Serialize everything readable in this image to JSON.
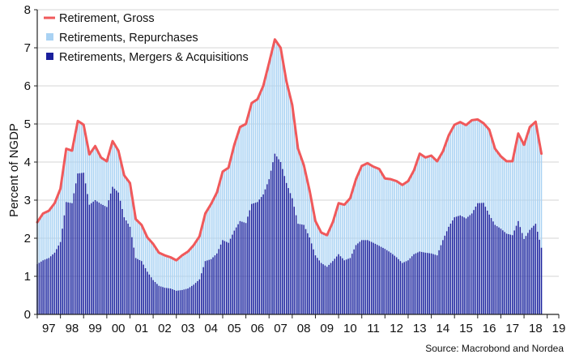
{
  "chart_data": {
    "type": "bar",
    "ylabel": "Percent of NGDP",
    "ylim": [
      0,
      8
    ],
    "yticks": [
      "0",
      "1",
      "2",
      "3",
      "4",
      "5",
      "6",
      "7",
      "8"
    ],
    "x_start": 1997.0,
    "x_end": 2019.5,
    "x_tick_labels": [
      "97",
      "98",
      "99",
      "00",
      "01",
      "02",
      "03",
      "04",
      "05",
      "06",
      "07",
      "08",
      "09",
      "10",
      "11",
      "12",
      "13",
      "14",
      "15",
      "16",
      "17",
      "18",
      "19"
    ],
    "legend": [
      {
        "name": "Retirement, Gross",
        "color": "#f0595b",
        "marker": "line"
      },
      {
        "name": "Retirements, Repurchases",
        "color": "#a9d2f3",
        "marker": "square"
      },
      {
        "name": "Retirements, Mergers & Acquisitions",
        "color": "#1a1f9c",
        "marker": "square"
      }
    ],
    "source": "Source: Macrobond and Nordea",
    "series": [
      {
        "name": "Retirement, Gross",
        "points": [
          [
            1997.0,
            2.42
          ],
          [
            1997.25,
            2.65
          ],
          [
            1997.5,
            2.72
          ],
          [
            1997.75,
            2.92
          ],
          [
            1998.0,
            3.3
          ],
          [
            1998.25,
            4.35
          ],
          [
            1998.5,
            4.3
          ],
          [
            1998.75,
            5.08
          ],
          [
            1999.0,
            4.98
          ],
          [
            1999.25,
            4.2
          ],
          [
            1999.5,
            4.42
          ],
          [
            1999.75,
            4.12
          ],
          [
            2000.0,
            4.02
          ],
          [
            2000.25,
            4.55
          ],
          [
            2000.5,
            4.3
          ],
          [
            2000.75,
            3.65
          ],
          [
            2001.0,
            3.45
          ],
          [
            2001.25,
            2.5
          ],
          [
            2001.5,
            2.35
          ],
          [
            2001.75,
            2.02
          ],
          [
            2002.0,
            1.85
          ],
          [
            2002.25,
            1.62
          ],
          [
            2002.5,
            1.55
          ],
          [
            2002.75,
            1.5
          ],
          [
            2003.0,
            1.42
          ],
          [
            2003.25,
            1.55
          ],
          [
            2003.5,
            1.65
          ],
          [
            2003.75,
            1.82
          ],
          [
            2004.0,
            2.05
          ],
          [
            2004.25,
            2.65
          ],
          [
            2004.5,
            2.9
          ],
          [
            2004.75,
            3.2
          ],
          [
            2005.0,
            3.75
          ],
          [
            2005.25,
            3.85
          ],
          [
            2005.5,
            4.45
          ],
          [
            2005.75,
            4.92
          ],
          [
            2006.0,
            5.0
          ],
          [
            2006.25,
            5.55
          ],
          [
            2006.5,
            5.65
          ],
          [
            2006.75,
            6.0
          ],
          [
            2007.0,
            6.6
          ],
          [
            2007.25,
            7.22
          ],
          [
            2007.5,
            7.0
          ],
          [
            2007.75,
            6.12
          ],
          [
            2008.0,
            5.5
          ],
          [
            2008.25,
            4.35
          ],
          [
            2008.5,
            3.92
          ],
          [
            2008.75,
            3.25
          ],
          [
            2009.0,
            2.45
          ],
          [
            2009.25,
            2.15
          ],
          [
            2009.5,
            2.08
          ],
          [
            2009.75,
            2.42
          ],
          [
            2010.0,
            2.92
          ],
          [
            2010.25,
            2.88
          ],
          [
            2010.5,
            3.05
          ],
          [
            2010.75,
            3.55
          ],
          [
            2011.0,
            3.9
          ],
          [
            2011.25,
            3.97
          ],
          [
            2011.5,
            3.88
          ],
          [
            2011.75,
            3.82
          ],
          [
            2012.0,
            3.57
          ],
          [
            2012.25,
            3.55
          ],
          [
            2012.5,
            3.5
          ],
          [
            2012.75,
            3.4
          ],
          [
            2013.0,
            3.5
          ],
          [
            2013.25,
            3.78
          ],
          [
            2013.5,
            4.22
          ],
          [
            2013.75,
            4.12
          ],
          [
            2014.0,
            4.17
          ],
          [
            2014.25,
            4.02
          ],
          [
            2014.5,
            4.28
          ],
          [
            2014.75,
            4.7
          ],
          [
            2015.0,
            4.98
          ],
          [
            2015.25,
            5.05
          ],
          [
            2015.5,
            4.97
          ],
          [
            2015.75,
            5.1
          ],
          [
            2016.0,
            5.12
          ],
          [
            2016.25,
            5.02
          ],
          [
            2016.5,
            4.85
          ],
          [
            2016.75,
            4.35
          ],
          [
            2017.0,
            4.15
          ],
          [
            2017.25,
            4.02
          ],
          [
            2017.5,
            4.02
          ],
          [
            2017.75,
            4.75
          ],
          [
            2018.0,
            4.45
          ],
          [
            2018.25,
            4.92
          ],
          [
            2018.5,
            5.06
          ],
          [
            2018.75,
            4.22
          ]
        ]
      },
      {
        "name": "Retirements, Repurchases",
        "points": [
          [
            1997.0,
            2.4
          ],
          [
            1997.25,
            2.62
          ],
          [
            1997.5,
            2.7
          ],
          [
            1997.75,
            2.9
          ],
          [
            1998.0,
            3.28
          ],
          [
            1998.25,
            4.3
          ],
          [
            1998.5,
            4.28
          ],
          [
            1998.75,
            5.05
          ],
          [
            1999.0,
            4.95
          ],
          [
            1999.25,
            4.18
          ],
          [
            1999.5,
            4.4
          ],
          [
            1999.75,
            4.1
          ],
          [
            2000.0,
            4.0
          ],
          [
            2000.25,
            4.5
          ],
          [
            2000.5,
            4.28
          ],
          [
            2000.75,
            3.62
          ],
          [
            2001.0,
            3.42
          ],
          [
            2001.25,
            2.48
          ],
          [
            2001.5,
            2.32
          ],
          [
            2001.75,
            2.0
          ],
          [
            2002.0,
            1.82
          ],
          [
            2002.25,
            1.6
          ],
          [
            2002.5,
            1.52
          ],
          [
            2002.75,
            1.48
          ],
          [
            2003.0,
            1.4
          ],
          [
            2003.25,
            1.52
          ],
          [
            2003.5,
            1.62
          ],
          [
            2003.75,
            1.8
          ],
          [
            2004.0,
            2.02
          ],
          [
            2004.25,
            2.62
          ],
          [
            2004.5,
            2.88
          ],
          [
            2004.75,
            3.18
          ],
          [
            2005.0,
            3.72
          ],
          [
            2005.25,
            3.82
          ],
          [
            2005.5,
            4.42
          ],
          [
            2005.75,
            4.9
          ],
          [
            2006.0,
            4.98
          ],
          [
            2006.25,
            5.52
          ],
          [
            2006.5,
            5.62
          ],
          [
            2006.75,
            5.98
          ],
          [
            2007.0,
            6.58
          ],
          [
            2007.25,
            7.18
          ],
          [
            2007.5,
            6.98
          ],
          [
            2007.75,
            6.1
          ],
          [
            2008.0,
            5.48
          ],
          [
            2008.25,
            4.32
          ],
          [
            2008.5,
            3.9
          ],
          [
            2008.75,
            3.22
          ],
          [
            2009.0,
            2.42
          ],
          [
            2009.25,
            2.12
          ],
          [
            2009.5,
            2.05
          ],
          [
            2009.75,
            2.4
          ],
          [
            2010.0,
            2.9
          ],
          [
            2010.25,
            2.85
          ],
          [
            2010.5,
            3.02
          ],
          [
            2010.75,
            3.52
          ],
          [
            2011.0,
            3.88
          ],
          [
            2011.25,
            3.95
          ],
          [
            2011.5,
            3.85
          ],
          [
            2011.75,
            3.8
          ],
          [
            2012.0,
            3.55
          ],
          [
            2012.25,
            3.52
          ],
          [
            2012.5,
            3.48
          ],
          [
            2012.75,
            3.38
          ],
          [
            2013.0,
            3.48
          ],
          [
            2013.25,
            3.75
          ],
          [
            2013.5,
            4.2
          ],
          [
            2013.75,
            4.1
          ],
          [
            2014.0,
            4.15
          ],
          [
            2014.25,
            4.0
          ],
          [
            2014.5,
            4.25
          ],
          [
            2014.75,
            4.68
          ],
          [
            2015.0,
            4.95
          ],
          [
            2015.25,
            5.02
          ],
          [
            2015.5,
            4.95
          ],
          [
            2015.75,
            5.08
          ],
          [
            2016.0,
            5.1
          ],
          [
            2016.25,
            5.0
          ],
          [
            2016.5,
            4.82
          ],
          [
            2016.75,
            4.32
          ],
          [
            2017.0,
            4.12
          ],
          [
            2017.25,
            4.0
          ],
          [
            2017.5,
            4.0
          ],
          [
            2017.75,
            4.72
          ],
          [
            2018.0,
            4.42
          ],
          [
            2018.25,
            4.9
          ],
          [
            2018.5,
            5.03
          ],
          [
            2018.75,
            4.2
          ]
        ]
      },
      {
        "name": "Retirements, Mergers & Acquisitions",
        "points": [
          [
            1997.0,
            1.32
          ],
          [
            1997.25,
            1.42
          ],
          [
            1997.5,
            1.48
          ],
          [
            1997.75,
            1.62
          ],
          [
            1998.0,
            1.9
          ],
          [
            1998.25,
            2.95
          ],
          [
            1998.5,
            2.92
          ],
          [
            1998.75,
            3.7
          ],
          [
            1999.0,
            3.72
          ],
          [
            1999.25,
            2.88
          ],
          [
            1999.5,
            3.0
          ],
          [
            1999.75,
            2.9
          ],
          [
            2000.0,
            2.82
          ],
          [
            2000.25,
            3.35
          ],
          [
            2000.5,
            3.2
          ],
          [
            2000.75,
            2.55
          ],
          [
            2001.0,
            2.3
          ],
          [
            2001.25,
            1.48
          ],
          [
            2001.5,
            1.4
          ],
          [
            2001.75,
            1.12
          ],
          [
            2002.0,
            0.9
          ],
          [
            2002.25,
            0.75
          ],
          [
            2002.5,
            0.7
          ],
          [
            2002.75,
            0.68
          ],
          [
            2003.0,
            0.62
          ],
          [
            2003.25,
            0.64
          ],
          [
            2003.5,
            0.68
          ],
          [
            2003.75,
            0.78
          ],
          [
            2004.0,
            0.92
          ],
          [
            2004.25,
            1.4
          ],
          [
            2004.5,
            1.45
          ],
          [
            2004.75,
            1.6
          ],
          [
            2005.0,
            1.95
          ],
          [
            2005.25,
            1.88
          ],
          [
            2005.5,
            2.2
          ],
          [
            2005.75,
            2.45
          ],
          [
            2006.0,
            2.4
          ],
          [
            2006.25,
            2.9
          ],
          [
            2006.5,
            2.95
          ],
          [
            2006.75,
            3.15
          ],
          [
            2007.0,
            3.55
          ],
          [
            2007.25,
            4.22
          ],
          [
            2007.5,
            4.0
          ],
          [
            2007.75,
            3.45
          ],
          [
            2008.0,
            3.05
          ],
          [
            2008.25,
            2.38
          ],
          [
            2008.5,
            2.35
          ],
          [
            2008.75,
            2.02
          ],
          [
            2009.0,
            1.55
          ],
          [
            2009.25,
            1.35
          ],
          [
            2009.5,
            1.25
          ],
          [
            2009.75,
            1.4
          ],
          [
            2010.0,
            1.58
          ],
          [
            2010.25,
            1.42
          ],
          [
            2010.5,
            1.48
          ],
          [
            2010.75,
            1.82
          ],
          [
            2011.0,
            1.95
          ],
          [
            2011.25,
            1.95
          ],
          [
            2011.5,
            1.88
          ],
          [
            2011.75,
            1.8
          ],
          [
            2012.0,
            1.72
          ],
          [
            2012.25,
            1.62
          ],
          [
            2012.5,
            1.5
          ],
          [
            2012.75,
            1.35
          ],
          [
            2013.0,
            1.42
          ],
          [
            2013.25,
            1.58
          ],
          [
            2013.5,
            1.65
          ],
          [
            2013.75,
            1.62
          ],
          [
            2014.0,
            1.6
          ],
          [
            2014.25,
            1.55
          ],
          [
            2014.5,
            1.95
          ],
          [
            2014.75,
            2.3
          ],
          [
            2015.0,
            2.55
          ],
          [
            2015.25,
            2.6
          ],
          [
            2015.5,
            2.52
          ],
          [
            2015.75,
            2.65
          ],
          [
            2016.0,
            2.92
          ],
          [
            2016.25,
            2.93
          ],
          [
            2016.5,
            2.62
          ],
          [
            2016.75,
            2.35
          ],
          [
            2017.0,
            2.25
          ],
          [
            2017.25,
            2.12
          ],
          [
            2017.5,
            2.08
          ],
          [
            2017.75,
            2.45
          ],
          [
            2018.0,
            1.98
          ],
          [
            2018.25,
            2.22
          ],
          [
            2018.5,
            2.38
          ],
          [
            2018.75,
            1.75
          ]
        ]
      }
    ]
  }
}
